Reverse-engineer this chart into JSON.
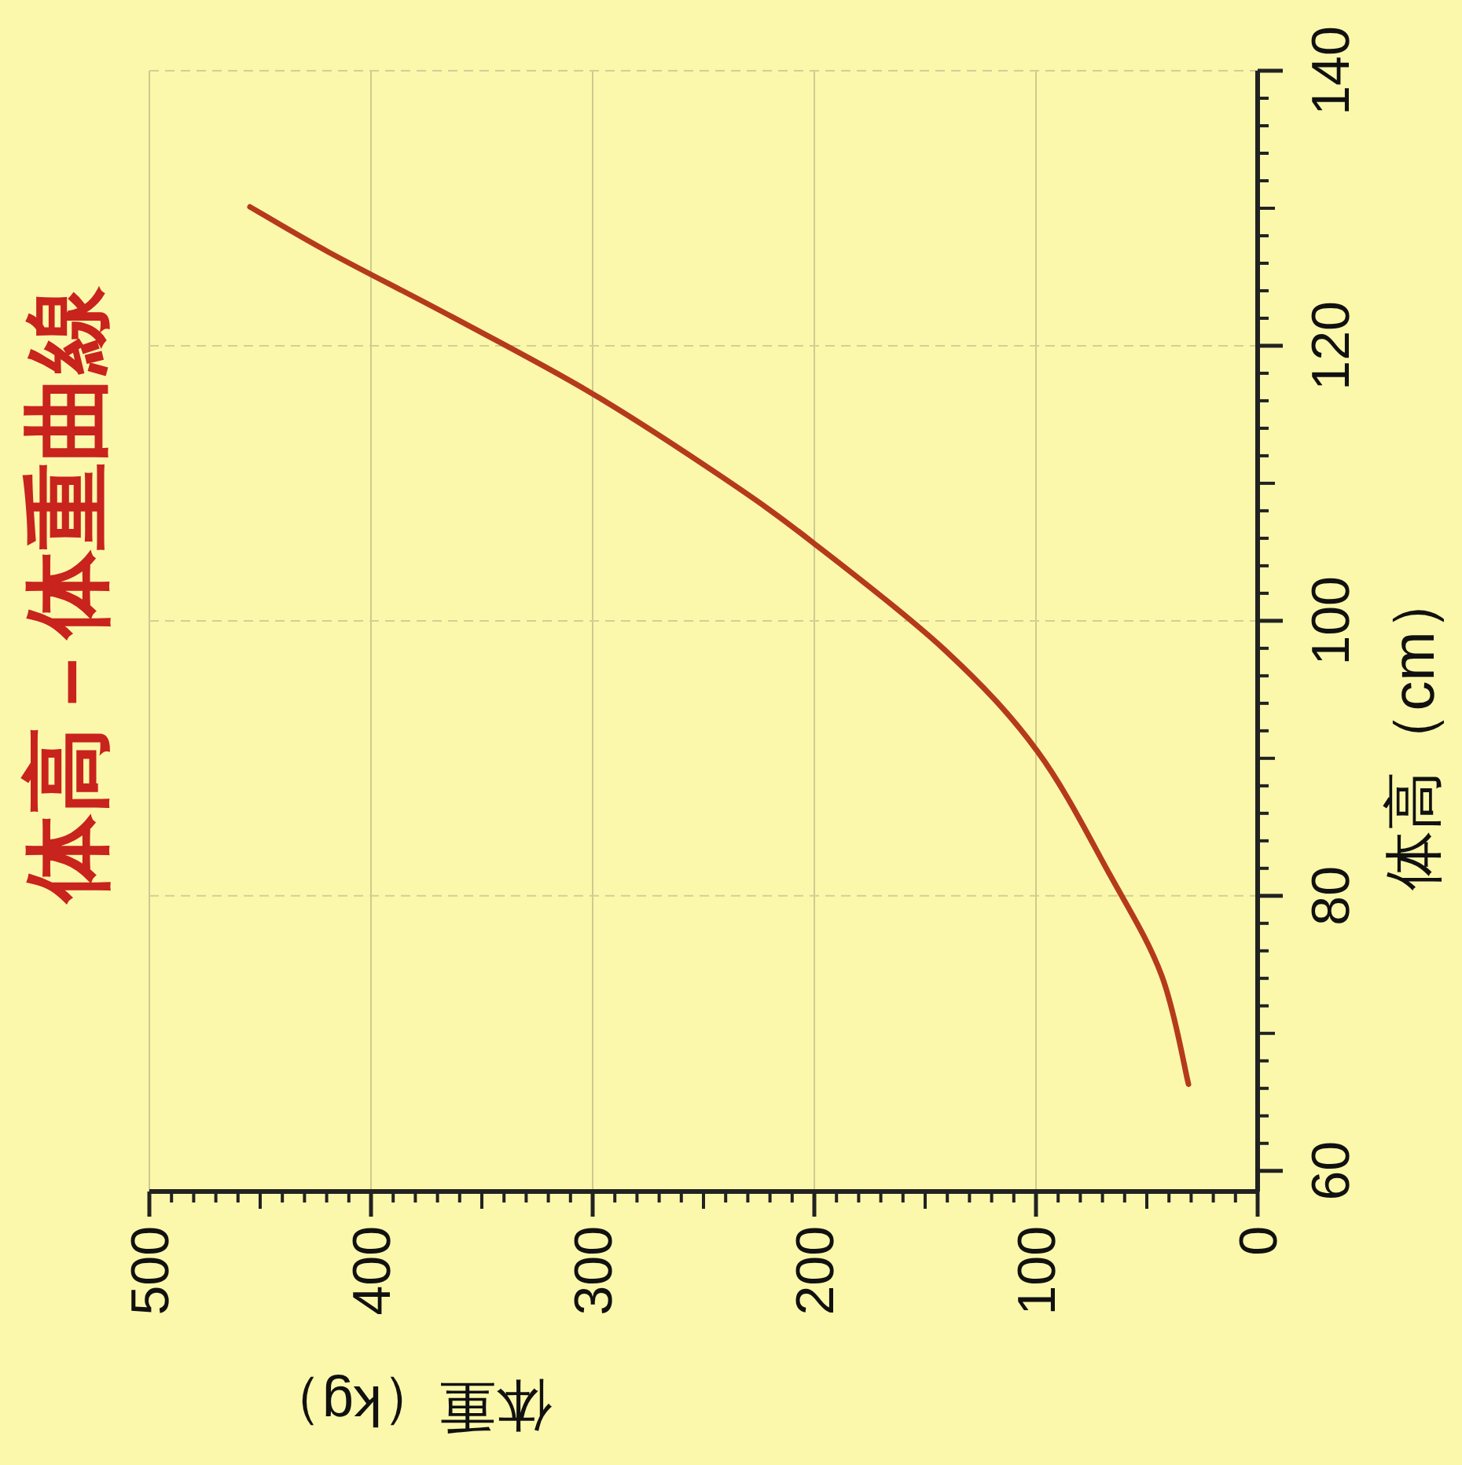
{
  "chart_data": {
    "type": "line",
    "title": "体高－体重曲線",
    "xlabel": "体重（kg）",
    "ylabel": "体高（cm）",
    "x": [
      454.6,
      419,
      363.4,
      301,
      242,
      200.7,
      141.3,
      99.3,
      66.9,
      43.3,
      31.2
    ],
    "series": [
      {
        "color": "#b53a1c",
        "values": [
          130.1,
          126.8,
          122.1,
          116.6,
          110.5,
          105.7,
          97.9,
          90.5,
          81.6,
          74.2,
          66.3
        ]
      }
    ],
    "xlim": [
      500,
      0
    ],
    "xticks": [
      500,
      400,
      300,
      200,
      100,
      0
    ],
    "ylim": [
      58.5,
      140
    ],
    "yticks": [
      60,
      80,
      100,
      120,
      140
    ],
    "grid": true,
    "marker": "none",
    "line_style": "solid"
  }
}
